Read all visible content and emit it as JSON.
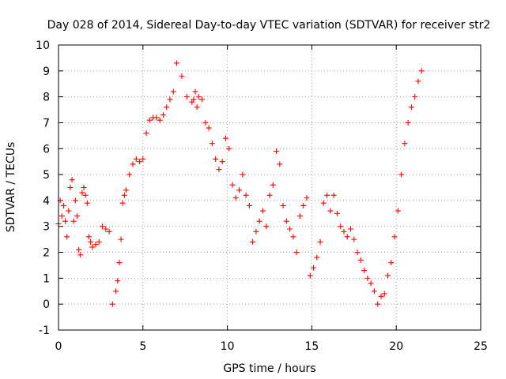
{
  "chart_data": {
    "type": "scatter",
    "title": "Day 028 of 2014, Sidereal Day-to-day VTEC variation (SDTVAR) for receiver str2",
    "xlabel": "GPS time / hours",
    "ylabel": "SDTVAR / TECUs",
    "xlim": [
      0,
      25
    ],
    "ylim": [
      -1,
      10
    ],
    "xticks": [
      0,
      5,
      10,
      15,
      20,
      25
    ],
    "yticks": [
      -1,
      0,
      1,
      2,
      3,
      4,
      5,
      6,
      7,
      8,
      9,
      10
    ],
    "grid": true,
    "marker": "plus",
    "color": "#ff0000",
    "series": [
      {
        "name": "SDTVAR",
        "x": [
          0.0,
          0.1,
          0.2,
          0.3,
          0.4,
          0.5,
          0.6,
          0.7,
          0.8,
          0.9,
          1.0,
          1.1,
          1.2,
          1.3,
          1.4,
          1.5,
          1.6,
          1.7,
          1.8,
          1.9,
          2.0,
          2.2,
          2.4,
          2.6,
          2.8,
          3.0,
          3.2,
          3.4,
          3.5,
          3.6,
          3.7,
          3.8,
          3.9,
          4.0,
          4.2,
          4.4,
          4.6,
          4.8,
          5.0,
          5.2,
          5.4,
          5.6,
          5.8,
          6.0,
          6.2,
          6.4,
          6.6,
          6.8,
          7.0,
          7.3,
          7.6,
          7.9,
          8.0,
          8.1,
          8.2,
          8.3,
          8.5,
          8.7,
          8.9,
          9.1,
          9.3,
          9.5,
          9.7,
          9.9,
          10.1,
          10.3,
          10.5,
          10.7,
          10.9,
          11.1,
          11.3,
          11.5,
          11.7,
          11.9,
          12.1,
          12.3,
          12.5,
          12.7,
          12.9,
          13.1,
          13.3,
          13.5,
          13.7,
          13.9,
          14.1,
          14.3,
          14.5,
          14.7,
          14.9,
          15.1,
          15.3,
          15.5,
          15.7,
          15.9,
          16.1,
          16.3,
          16.5,
          16.7,
          16.9,
          17.1,
          17.3,
          17.5,
          17.7,
          17.9,
          18.1,
          18.3,
          18.5,
          18.7,
          18.9,
          19.1,
          19.3,
          19.5,
          19.7,
          19.9,
          20.1,
          20.3,
          20.5,
          20.7,
          20.9,
          21.1,
          21.3,
          21.5
        ],
        "y": [
          3.1,
          4.0,
          3.4,
          3.8,
          3.2,
          2.6,
          3.6,
          4.5,
          4.8,
          3.2,
          4.0,
          3.4,
          2.1,
          1.9,
          4.3,
          4.5,
          4.2,
          3.9,
          2.6,
          2.4,
          2.2,
          2.3,
          2.4,
          3.0,
          2.9,
          2.8,
          0.0,
          0.5,
          0.9,
          1.6,
          2.5,
          3.9,
          4.2,
          4.4,
          5.0,
          5.4,
          5.6,
          5.5,
          5.6,
          6.6,
          7.1,
          7.2,
          7.2,
          7.1,
          7.3,
          7.6,
          7.9,
          8.2,
          9.3,
          8.8,
          8.0,
          7.8,
          7.9,
          8.2,
          7.6,
          8.0,
          7.9,
          7.0,
          6.8,
          6.2,
          5.6,
          5.2,
          5.5,
          6.4,
          6.0,
          4.6,
          4.1,
          4.4,
          5.0,
          4.2,
          3.8,
          2.4,
          2.8,
          3.2,
          3.6,
          3.0,
          4.2,
          4.6,
          5.9,
          5.4,
          3.8,
          3.2,
          2.9,
          2.6,
          2.0,
          3.4,
          3.8,
          4.1,
          1.1,
          1.4,
          1.8,
          2.4,
          3.9,
          4.2,
          3.6,
          4.2,
          3.5,
          3.0,
          2.8,
          2.6,
          2.9,
          2.5,
          2.0,
          1.7,
          1.3,
          1.0,
          0.8,
          0.5,
          0.0,
          0.3,
          0.4,
          1.1,
          1.6,
          2.6,
          3.6,
          5.0,
          6.2,
          7.0,
          7.6,
          8.0,
          8.6,
          9.0
        ]
      }
    ]
  }
}
